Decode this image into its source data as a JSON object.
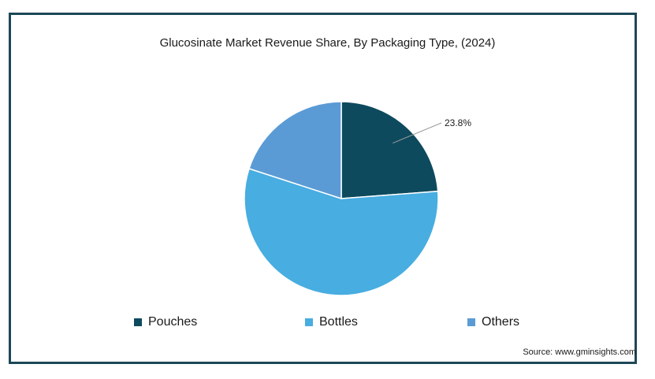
{
  "chart_data": {
    "type": "pie",
    "title": "Glucosinate Market Revenue Share, By Packaging Type, (2024)",
    "slices": [
      {
        "name": "Pouches",
        "value": 23.8,
        "color": "#0d4a5e",
        "label": "23.8%"
      },
      {
        "name": "Bottles",
        "value": 56.2,
        "color": "#48ade0",
        "label": ""
      },
      {
        "name": "Others",
        "value": 20.0,
        "color": "#5b9bd5",
        "label": ""
      }
    ],
    "legend_position": "bottom"
  },
  "source": "Source: www.gminsights.com"
}
